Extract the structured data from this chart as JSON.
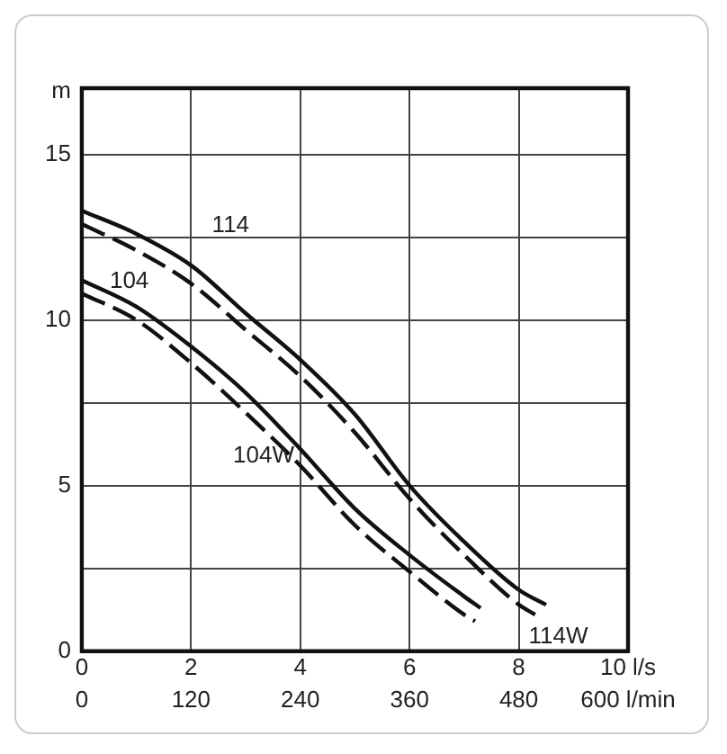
{
  "chart_data": {
    "type": "line",
    "ylabel": "m",
    "xlim": [
      0,
      10
    ],
    "xticks": [
      0,
      2,
      4,
      6,
      8,
      {
        "value": 10,
        "label": "10 l/s"
      }
    ],
    "x2lim": [
      0,
      600
    ],
    "x2ticks": [
      0,
      120,
      240,
      360,
      480,
      {
        "value": 600,
        "label": "600 l/min"
      }
    ],
    "ylim": [
      0,
      17
    ],
    "yticks": [
      0,
      {
        "value": 2.5,
        "label": null
      },
      5,
      {
        "value": 7.5,
        "label": null
      },
      10,
      {
        "value": 12.5,
        "label": null
      },
      15
    ],
    "grid": true,
    "legend": false,
    "marker": "none",
    "series": [
      {
        "name": "114",
        "color": "#111111",
        "line_style": "solid",
        "x": [
          0,
          1,
          2,
          3,
          4,
          5,
          6,
          7,
          8,
          8.5
        ],
        "values": [
          13.3,
          12.6,
          11.65,
          10.2,
          8.8,
          7.15,
          5.0,
          3.3,
          1.85,
          1.4
        ]
      },
      {
        "name": "114W",
        "color": "#111111",
        "line_style": "dashed",
        "x": [
          0,
          1,
          2,
          3,
          4,
          5,
          6,
          7,
          8,
          8.3
        ],
        "values": [
          12.9,
          12.1,
          11.1,
          9.7,
          8.3,
          6.6,
          4.6,
          2.9,
          1.4,
          1.1
        ]
      },
      {
        "name": "104",
        "color": "#111111",
        "line_style": "solid",
        "x": [
          0,
          1,
          2,
          3,
          4,
          5,
          6,
          7,
          7.3
        ],
        "values": [
          11.2,
          10.4,
          9.2,
          7.8,
          6.1,
          4.3,
          2.9,
          1.65,
          1.3
        ]
      },
      {
        "name": "104W",
        "color": "#111111",
        "line_style": "dashed",
        "x": [
          0,
          1,
          2,
          3,
          4,
          5,
          6,
          7,
          7.2
        ],
        "values": [
          10.8,
          10.0,
          8.7,
          7.2,
          5.6,
          3.8,
          2.4,
          1.1,
          0.9
        ]
      }
    ]
  }
}
